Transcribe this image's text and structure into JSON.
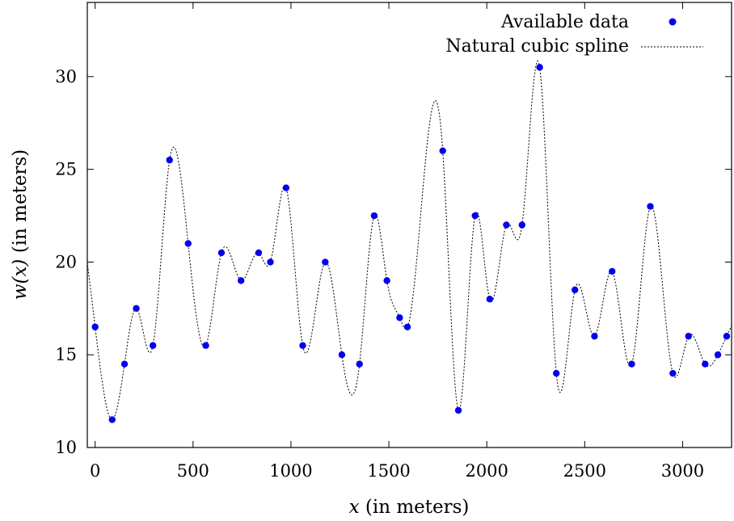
{
  "chart_data": {
    "type": "scatter",
    "xlabel_var": "x",
    "xlabel_rest": " (in meters)",
    "ylabel_var": "w(x)",
    "ylabel_rest": " (in meters)",
    "xlim": [
      -40,
      3250
    ],
    "ylim": [
      10,
      34
    ],
    "xticks": [
      0,
      500,
      1000,
      1500,
      2000,
      2500,
      3000
    ],
    "yticks": [
      10,
      15,
      20,
      25,
      30
    ],
    "grid": false,
    "legend_position": "top-right",
    "series": [
      {
        "name": "Available data",
        "kind": "points",
        "color": "#0000ee",
        "x": [
          0,
          87,
          150,
          210,
          295,
          380,
          475,
          565,
          645,
          745,
          835,
          895,
          975,
          1060,
          1175,
          1260,
          1350,
          1425,
          1490,
          1555,
          1595,
          1775,
          1855,
          1940,
          2015,
          2100,
          2180,
          2270,
          2355,
          2450,
          2550,
          2640,
          2740,
          2835,
          2950,
          3030,
          3115,
          3180,
          3225
        ],
        "y": [
          16.5,
          11.5,
          14.5,
          17.5,
          15.5,
          25.5,
          21.0,
          15.5,
          20.5,
          19.0,
          20.5,
          20.0,
          24.0,
          15.5,
          20.0,
          15.0,
          14.5,
          22.5,
          19.0,
          17.0,
          16.5,
          26.0,
          12.0,
          22.5,
          18.0,
          22.0,
          22.0,
          30.5,
          14.0,
          18.5,
          16.0,
          19.5,
          14.5,
          23.0,
          14.0,
          16.0,
          14.5,
          15.0,
          16.0
        ]
      },
      {
        "name": "Natural cubic spline",
        "kind": "line",
        "style": "dotted",
        "color": "#000000"
      }
    ]
  }
}
